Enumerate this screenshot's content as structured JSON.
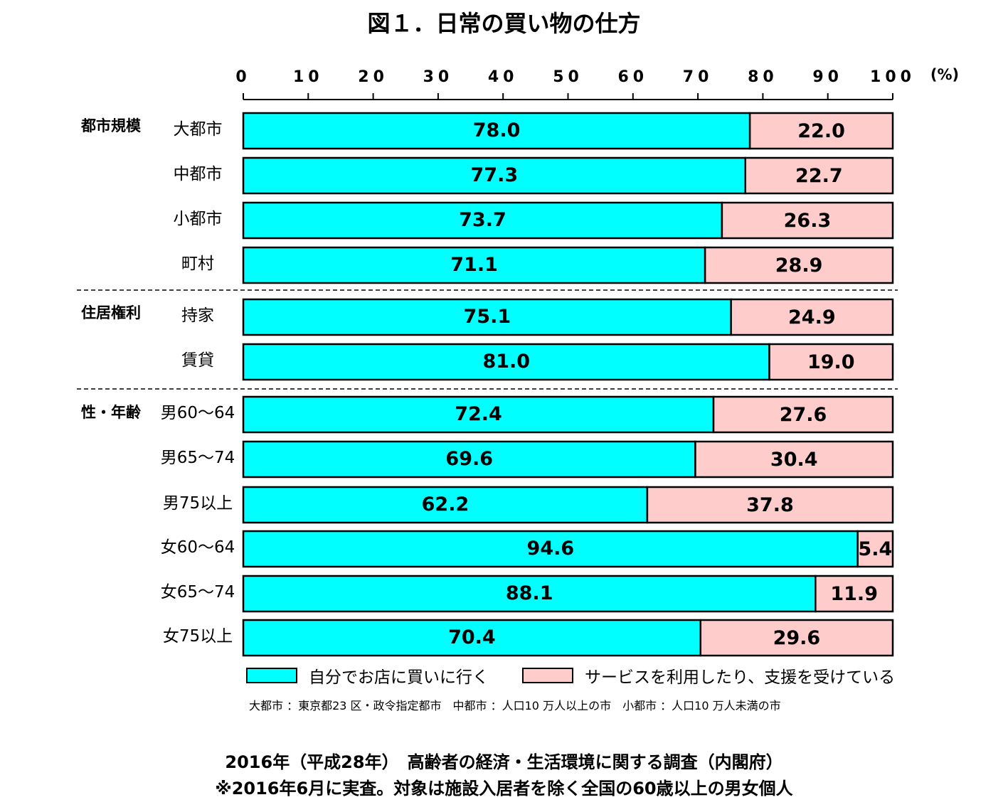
{
  "title": "図１．日常の買い物の仕方",
  "chart_data": {
    "type": "bar",
    "orientation": "horizontal",
    "stacked": true,
    "xlim": [
      0,
      100
    ],
    "x_ticks": [
      "0",
      "10",
      "20",
      "30",
      "40",
      "50",
      "60",
      "70",
      "80",
      "90",
      "100"
    ],
    "x_unit": "(%)",
    "colors": {
      "self": "#00ffff",
      "service": "#ffcccc",
      "border": "#000000"
    },
    "groups": [
      {
        "label": "都市規模",
        "categories": [
          "大都市",
          "中都市",
          "小都市",
          "町村"
        ]
      },
      {
        "label": "住居権利",
        "categories": [
          "持家",
          "賃貸"
        ]
      },
      {
        "label": "性・年齢",
        "categories": [
          "男60～64",
          "男65～74",
          "男75以上",
          "女60～64",
          "女65～74",
          "女75以上"
        ]
      }
    ],
    "categories": [
      "大都市",
      "中都市",
      "小都市",
      "町村",
      "持家",
      "賃貸",
      "男60～64",
      "男65～74",
      "男75以上",
      "女60～64",
      "女65～74",
      "女75以上"
    ],
    "series": [
      {
        "name": "自分でお店に買いに行く",
        "values": [
          78.0,
          77.3,
          73.7,
          71.1,
          75.1,
          81.0,
          72.4,
          69.6,
          62.2,
          94.6,
          88.1,
          70.4
        ]
      },
      {
        "name": "サービスを利用したり、支援を受けている",
        "values": [
          22.0,
          22.7,
          26.3,
          28.9,
          24.9,
          19.0,
          27.6,
          30.4,
          37.8,
          5.4,
          11.9,
          29.6
        ]
      }
    ]
  },
  "legend": {
    "self_label": "自分でお店に買いに行く",
    "service_label": "サービスを利用したり、支援を受けている"
  },
  "note": "大都市 ：東京都23 区・政令指定都市　中都市 ：人口10 万人以上の市　小都市 ：人口10 万人未満の市",
  "source": {
    "line1": "2016年（平成28年）　高齢者の経済・生活環境に関する調査（内閣府）",
    "line2": "※2016年6月に実査。対象は施設入居者を除く全国の60歳以上の男女個人"
  }
}
